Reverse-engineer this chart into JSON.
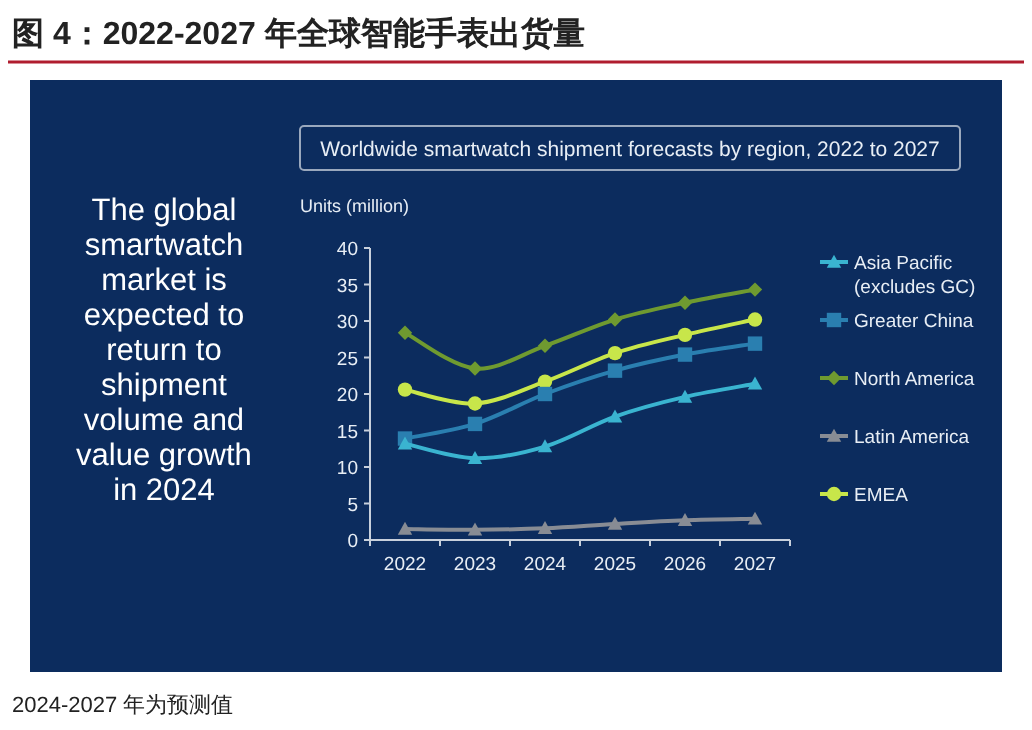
{
  "chart_data": {
    "type": "line",
    "title": "图 4：2022-2027 年全球智能手表出货量",
    "subtitle": "Worldwide smartwatch shipment forecasts by region, 2022 to 2027",
    "ylabel": "Units (million)",
    "annotations": [
      "The global smartwatch market is expected to return to shipment volume and value growth in 2024",
      "2024-2027 年为预测值"
    ],
    "categories": [
      "2022",
      "2023",
      "2024",
      "2025",
      "2026",
      "2027"
    ],
    "series": [
      {
        "name": "Asia Pacific (excludes GC)",
        "color": "#3ab4d0",
        "marker": "triangle",
        "values": [
          13.2,
          11.2,
          12.8,
          16.9,
          19.6,
          21.4
        ]
      },
      {
        "name": "Greater China",
        "color": "#2a7fb0",
        "marker": "square",
        "values": [
          13.9,
          15.9,
          20.0,
          23.2,
          25.4,
          26.9
        ]
      },
      {
        "name": "North America",
        "color": "#6f9a30",
        "marker": "diamond",
        "values": [
          28.4,
          23.5,
          26.6,
          30.2,
          32.5,
          34.3
        ]
      },
      {
        "name": "Latin America",
        "color": "#888c94",
        "marker": "triangle",
        "values": [
          1.5,
          1.4,
          1.6,
          2.2,
          2.7,
          2.9
        ]
      },
      {
        "name": "EMEA",
        "color": "#c8e64a",
        "marker": "circle",
        "values": [
          20.6,
          18.7,
          21.7,
          25.6,
          28.1,
          30.2
        ]
      }
    ],
    "ylim": [
      0,
      40
    ],
    "yticks": [
      0,
      5,
      10,
      15,
      20,
      25,
      30,
      35,
      40
    ],
    "grid": false,
    "legend": "right",
    "line_style": "solid"
  }
}
